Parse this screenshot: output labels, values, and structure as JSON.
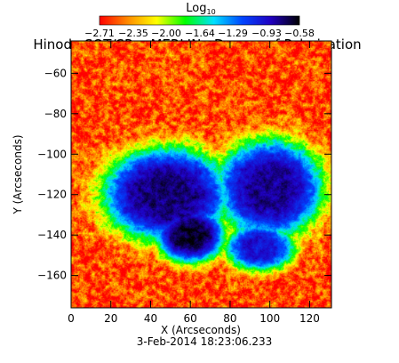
{
  "chart_data": {
    "type": "heatmap",
    "title": "Hinode SOT/SP -- MERLIN : Degree of Polarization",
    "subtitle": "3-Feb-2014 18:23:06.233",
    "xlabel": "X (Arcseconds)",
    "ylabel": "Y (Arcseconds)",
    "xlim": [
      0,
      131
    ],
    "ylim": [
      -176,
      -44
    ],
    "x_ticks": [
      0,
      20,
      40,
      60,
      80,
      100,
      120
    ],
    "x_tick_labels": [
      "0",
      "20",
      "40",
      "60",
      "80",
      "100",
      "120"
    ],
    "y_ticks": [
      -160,
      -140,
      -120,
      -100,
      -80,
      -60
    ],
    "y_tick_labels": [
      "−160",
      "−140",
      "−120",
      "−100",
      "−80",
      "−60"
    ],
    "colorbar": {
      "title_base": "Log",
      "title_subscript": "10",
      "ticks": [
        -2.71,
        -2.35,
        -2.0,
        -1.64,
        -1.29,
        -0.93,
        -0.58
      ],
      "tick_labels": [
        "−2.71",
        "−2.35",
        "−2.00",
        "−1.64",
        "−1.29",
        "−0.93",
        "−0.58"
      ],
      "range": [
        -2.71,
        -0.58
      ],
      "colors": [
        "#ff0000",
        "#ff8c00",
        "#ffff00",
        "#00ff00",
        "#00e0ff",
        "#0044ff",
        "#2000c0",
        "#000000"
      ]
    },
    "features": [
      {
        "center": [
          48,
          -120
        ],
        "radius_x": 33,
        "radius_y": 24,
        "level": -0.75
      },
      {
        "center": [
          60,
          -140
        ],
        "radius_x": 18,
        "radius_y": 14,
        "level": -0.65
      },
      {
        "center": [
          100,
          -117
        ],
        "radius_x": 28,
        "radius_y": 25,
        "level": -0.8
      },
      {
        "center": [
          95,
          -146
        ],
        "radius_x": 18,
        "radius_y": 12,
        "level": -0.95
      }
    ],
    "background_level": -2.55
  }
}
